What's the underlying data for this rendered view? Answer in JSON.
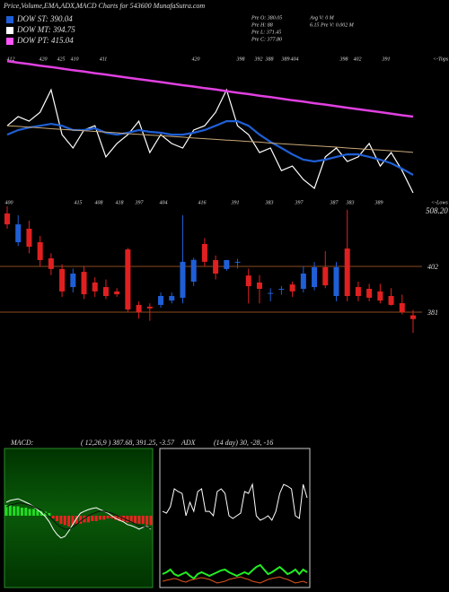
{
  "header": {
    "title": "Price,Volume,EMA,ADX,MACD Charts for 543600 MunafaSutra.com"
  },
  "legend": [
    {
      "name": "DOW ST: 390.04",
      "color": "#1f5fd6"
    },
    {
      "name": "DOW MT: 394.75",
      "color": "#ffffff"
    },
    {
      "name": "DOW PT: 415.04",
      "color": "#ff55ff"
    }
  ],
  "info": [
    "Pre O: 380.05",
    "Pre H: 88",
    "Pre L: 371.45",
    "Pre C: 377.80"
  ],
  "info2": [
    "Avg V: 0  M",
    "6.15  Pre V: 0.002  M"
  ],
  "chart_data": [
    {
      "type": "line",
      "top_labels": [
        "412",
        "420",
        "425",
        "410",
        "411",
        "420",
        "398",
        "392",
        "388",
        "389",
        "404",
        "398",
        "402",
        "391"
      ],
      "bottom_labels": [
        "400",
        "415",
        "408",
        "418",
        "397",
        "404",
        "416",
        "391",
        "383",
        "397",
        "387",
        "383",
        "389"
      ],
      "top_note": "<-Tops",
      "bottom_note": "<-Lows",
      "ylim": [
        378,
        445
      ],
      "series": [
        {
          "color": "#ffffff",
          "values": [
            413.4,
            417.4,
            415.4,
            419.3,
            429.2,
            409.5,
            403.6,
            411.5,
            413.4,
            399.7,
            405.6,
            409.5,
            415.4,
            401.6,
            409.5,
            405.6,
            403.6,
            411.5,
            413.4,
            419.3,
            429.2,
            413.4,
            409.5,
            401.6,
            403.6,
            393.7,
            395.7,
            389.8,
            385.9,
            399.7,
            403.6,
            397.7,
            399.7,
            405.6,
            395.7,
            401.6,
            393.7,
            383.9
          ]
        },
        {
          "color": "#1f5fd6",
          "values": [
            409.5,
            411.5,
            412.6,
            413.4,
            414.2,
            413.4,
            411.5,
            411.5,
            412.3,
            410.3,
            409.5,
            410.3,
            411.5,
            410.7,
            410.3,
            409.5,
            409.5,
            410.3,
            411.5,
            413.4,
            415.4,
            415.4,
            413.4,
            409.5,
            406.3,
            403.6,
            400.8,
            398.5,
            397.7,
            398.5,
            399.7,
            400.8,
            400.8,
            399.7,
            398.5,
            396.9,
            394.5,
            391.8
          ]
        },
        {
          "color": "#c8a878",
          "values": [
            413.4,
            413.1,
            412.8,
            412.5,
            412.1,
            411.8,
            411.5,
            411.2,
            410.9,
            410.6,
            410.3,
            409.9,
            409.6,
            409.3,
            409.0,
            408.7,
            408.4,
            408.0,
            407.7,
            407.4,
            407.1,
            406.8,
            406.5,
            406.2,
            405.8,
            405.5,
            405.2,
            404.9,
            404.6,
            404.3,
            404.0,
            403.6,
            403.3,
            403.0,
            402.7,
            402.4,
            402.1,
            401.7
          ]
        },
        {
          "color": "#e040e0",
          "values": [
            441.8,
            441.1,
            440.5,
            439.8,
            439.2,
            438.5,
            437.8,
            437.2,
            436.5,
            435.9,
            435.2,
            434.5,
            433.9,
            433.2,
            432.6,
            431.9,
            431.2,
            430.6,
            429.9,
            429.3,
            428.6,
            427.9,
            427.3,
            426.6,
            426.0,
            425.3,
            424.6,
            424.0,
            423.3,
            422.7,
            422.0,
            421.3,
            420.7,
            420.0,
            419.4,
            418.7,
            418.0,
            417.4
          ]
        }
      ]
    },
    {
      "type": "candlestick",
      "up_color": "#1f5fd6",
      "down_color": "#e02020",
      "level_color": "#8b4a20",
      "ylim": [
        367.8,
        429.6
      ],
      "yticks": [
        381,
        402
      ],
      "top_label": "508.20",
      "open": [
        426.3,
        413.1,
        419.3,
        413.1,
        405.7,
        400.8,
        392.5,
        399.5,
        394.6,
        392.5,
        390.5,
        409.8,
        384.3,
        383.5,
        384.3,
        386.3,
        387.6,
        395.0,
        412.3,
        404.9,
        400.8,
        404.0,
        397.8,
        394.6,
        389.8,
        391.7,
        393.7,
        391.7,
        392.5,
        401.6,
        388.4,
        410.2,
        392.5,
        391.7,
        390.5,
        388.4,
        385.1,
        379.5
      ],
      "high": [
        429.6,
        425.5,
        423.0,
        416.0,
        408.0,
        403.0,
        401.0,
        402.0,
        397.0,
        396.0,
        392.0,
        410.5,
        386.0,
        385.0,
        390.0,
        390.0,
        425.5,
        406.0,
        415.0,
        407.0,
        405.0,
        405.5,
        401.0,
        398.0,
        392.0,
        393.0,
        395.0,
        402.0,
        404.0,
        409.0,
        404.0,
        428.0,
        395.0,
        394.0,
        394.0,
        392.0,
        389.0,
        382.0
      ],
      "low": [
        419.3,
        411.4,
        408.0,
        402.0,
        398.0,
        388.0,
        390.0,
        387.0,
        388.0,
        387.0,
        388.0,
        381.0,
        378.0,
        377.0,
        383.0,
        385.0,
        385.0,
        393.0,
        402.0,
        396.0,
        400.0,
        401.0,
        385.0,
        385.0,
        386.0,
        389.0,
        388.0,
        390.0,
        391.0,
        392.0,
        386.0,
        386.0,
        386.0,
        386.0,
        385.0,
        384.0,
        380.0,
        371.5
      ],
      "close": [
        421.3,
        421.3,
        411.0,
        404.9,
        400.8,
        390.5,
        398.7,
        389.2,
        390.5,
        388.4,
        389.2,
        382.2,
        381.0,
        382.7,
        388.4,
        388.4,
        404.1,
        405.0,
        404.1,
        398.7,
        404.9,
        404.1,
        392.9,
        391.7,
        389.8,
        391.7,
        390.5,
        398.7,
        401.6,
        393.3,
        401.6,
        388.4,
        388.4,
        387.6,
        386.3,
        384.3,
        381.0,
        377.8
      ]
    },
    {
      "type": "macd",
      "title": "MACD:",
      "subtitle": "( 12,26,9 ) 387.68, 391.25, -3.57",
      "ylim": [
        -26.7,
        25
      ],
      "up_color": "#22dd22",
      "down_color": "#ee2222",
      "series": [
        {
          "color": "#ffffff",
          "values": [
            5,
            5.7,
            6,
            6.3,
            5.7,
            5,
            4.3,
            3.3,
            2.3,
            1,
            -0.3,
            -2.3,
            -5,
            -7,
            -8.3,
            -7.7,
            -5.7,
            -3.3,
            -1,
            1,
            1.7,
            2.3,
            2.7,
            3,
            2.3,
            1.7,
            1,
            0,
            -1,
            -1.7,
            -2.3,
            -3.3,
            -3.7,
            -4.3,
            -5,
            -4.3,
            -4,
            -5
          ]
        },
        {
          "color": "#111111",
          "values": [
            3.3,
            4,
            4.3,
            4.7,
            4.7,
            4.3,
            4,
            3.3,
            2.7,
            2,
            1,
            -0.3,
            -1.7,
            -3.3,
            -4.3,
            -5,
            -5,
            -4.3,
            -3.3,
            -2,
            -1,
            0,
            0.7,
            1.3,
            1.7,
            1.7,
            1.3,
            1,
            0.3,
            -0.3,
            -1,
            -1.7,
            -2.3,
            -3,
            -3.7,
            -4,
            -4.3,
            -4.7
          ]
        }
      ],
      "histogram": [
        4,
        4,
        3.5,
        3.5,
        3,
        3,
        2.5,
        2.5,
        2,
        2,
        1.5,
        1,
        -1,
        -2,
        -3,
        -3.5,
        -4,
        -3.5,
        -3,
        -3,
        -2.5,
        -2.5,
        -2,
        -2,
        -1.5,
        -1.5,
        -1,
        -1,
        -1.5,
        -2,
        -2,
        -2.5,
        -2.5,
        -3,
        -3,
        -3,
        -3.5,
        -3.5
      ]
    },
    {
      "type": "adx",
      "title": "ADX",
      "subtitle": "(14 day) 30, -28, -16",
      "ylim": [
        0,
        100
      ],
      "series": [
        {
          "color": "#ffffff",
          "values": [
            54.8,
            53.5,
            58.1,
            71,
            69,
            67.7,
            51.6,
            61.3,
            54.8,
            69,
            71,
            54.8,
            54.8,
            51.6,
            69,
            71,
            67.7,
            51.6,
            49.7,
            51.6,
            53.5,
            69,
            67.7,
            74.2,
            51.6,
            48.4,
            49.7,
            51.6,
            48.4,
            54.8,
            67.7,
            74.2,
            72.9,
            71,
            51.6,
            49.7,
            74.2,
            64.5
          ]
        },
        {
          "color": "#22ee22",
          "values": [
            9.7,
            11,
            12.9,
            9.7,
            8.4,
            9.7,
            11,
            8.4,
            6.5,
            9.7,
            11,
            9.7,
            8.4,
            9.7,
            11,
            12.3,
            12.9,
            11,
            9.7,
            8.4,
            9.7,
            11,
            9.7,
            12.3,
            14.8,
            16.1,
            12.9,
            9.7,
            11,
            12.9,
            14.8,
            12.3,
            9.7,
            11,
            12.9,
            9.7,
            12.9,
            11
          ]
        },
        {
          "color": "#dd5522",
          "values": [
            4.5,
            5.2,
            5.8,
            6.5,
            5.8,
            4.5,
            3.9,
            5.2,
            5.8,
            6.5,
            7.1,
            6.5,
            5.8,
            4.5,
            3.2,
            3.9,
            4.5,
            5.8,
            6.5,
            7.1,
            7.7,
            6.5,
            5.8,
            4.5,
            3.9,
            3.2,
            4.5,
            5.8,
            6.5,
            7.1,
            7.7,
            6.5,
            5.8,
            4.5,
            3.2,
            3.9,
            4.5,
            3.2
          ]
        }
      ]
    }
  ]
}
